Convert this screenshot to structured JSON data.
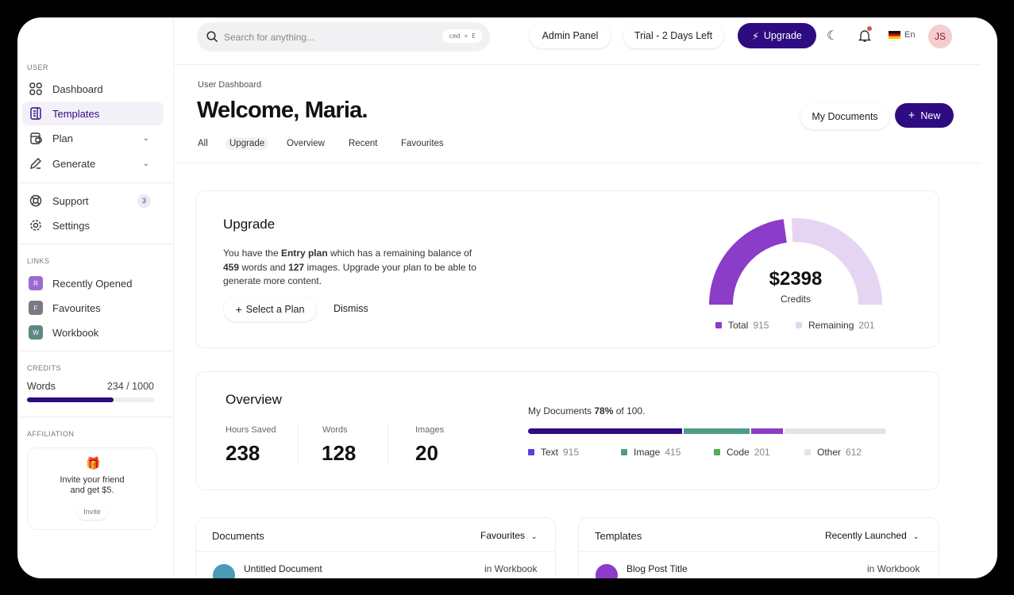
{
  "colors": {
    "primary": "#2e0b80",
    "purple": "#8b3cc8",
    "lavender": "#e6d5f2",
    "teal": "#4d9e86",
    "green": "#4caf50",
    "gray": "#e4e4e6"
  },
  "sidebar": {
    "user_section": "USER",
    "items": [
      {
        "label": "Dashboard",
        "icon": "grid-icon"
      },
      {
        "label": "Templates",
        "icon": "document-icon",
        "active": true
      },
      {
        "label": "Plan",
        "icon": "wallet-icon"
      },
      {
        "label": "Generate",
        "icon": "pen-icon"
      },
      {
        "label": "Support",
        "icon": "lifebuoy-icon",
        "badge": "3"
      },
      {
        "label": "Settings",
        "icon": "gear-icon"
      }
    ],
    "links_section": "LINKS",
    "links": [
      {
        "initial": "R",
        "label": "Recently Opened",
        "color": "#9b6cd0"
      },
      {
        "initial": "F",
        "label": "Favourites",
        "color": "#7a7a86"
      },
      {
        "initial": "W",
        "label": "Workbook",
        "color": "#5e8a86"
      }
    ],
    "credits_section": "CREDITS",
    "credits": {
      "label": "Words",
      "value": "234 / 1000",
      "progress": 0.68
    },
    "affiliation_section": "AFFILIATION",
    "affiliation": {
      "text1": "Invite your friend",
      "text2": "and get $5.",
      "button": "Invite"
    }
  },
  "topbar": {
    "search_placeholder": "Search for anything...",
    "shortcut": "cmd + E",
    "admin_panel": "Admin Panel",
    "trial": "Trial - 2 Days Left",
    "upgrade": "Upgrade",
    "language": "En",
    "avatar": "JS"
  },
  "header": {
    "breadcrumb": "User Dashboard",
    "title": "Welcome, Maria.",
    "tabs": [
      "All",
      "Upgrade",
      "Overview",
      "Recent",
      "Favourites"
    ],
    "my_documents": "My Documents",
    "new": "New"
  },
  "upgrade": {
    "title": "Upgrade",
    "t1": "You have the ",
    "plan": "Entry plan",
    "t2": " which has a remaining balance of",
    "words": "459",
    "t3": " words and ",
    "images": "127",
    "t4": " images. Upgrade your plan to be able to",
    "t5": "generate more content.",
    "select_plan": "Select a Plan",
    "dismiss": "Dismiss",
    "gauge": {
      "value": "$2398",
      "label": "Credits",
      "filled_fraction": 0.47,
      "legend": [
        {
          "label": "Total",
          "value": "915"
        },
        {
          "label": "Remaining",
          "value": "201"
        }
      ]
    }
  },
  "overview": {
    "title": "Overview",
    "stats": [
      {
        "label": "Hours Saved",
        "value": "238"
      },
      {
        "label": "Words",
        "value": "128"
      },
      {
        "label": "Images",
        "value": "20"
      }
    ],
    "docs_pre": "My Documents ",
    "docs_pct": "78%",
    "docs_post": " of 100.",
    "segments": [
      {
        "label": "Text",
        "value": "915",
        "fraction": 0.436,
        "color": "#2e0b80",
        "legend_color": "#5b3fe0"
      },
      {
        "label": "Image",
        "value": "415",
        "fraction": 0.187,
        "color": "#4d9e86",
        "legend_color": "#4d9e86"
      },
      {
        "label": "Code",
        "value": "201",
        "fraction": 0.089,
        "color": "#8b3cc8",
        "legend_color": "#4caf50"
      },
      {
        "label": "Other",
        "value": "612",
        "fraction": 0.288,
        "color": "#e4e4e6",
        "legend_color": "#e4e4e6"
      }
    ]
  },
  "documents": {
    "title": "Documents",
    "filter": "Favourites",
    "row": {
      "name": "Untitled Document",
      "location": "in Workbook"
    }
  },
  "templates": {
    "title": "Templates",
    "filter": "Recently Launched",
    "row": {
      "name": "Blog Post Title",
      "location": "in Workbook"
    }
  }
}
